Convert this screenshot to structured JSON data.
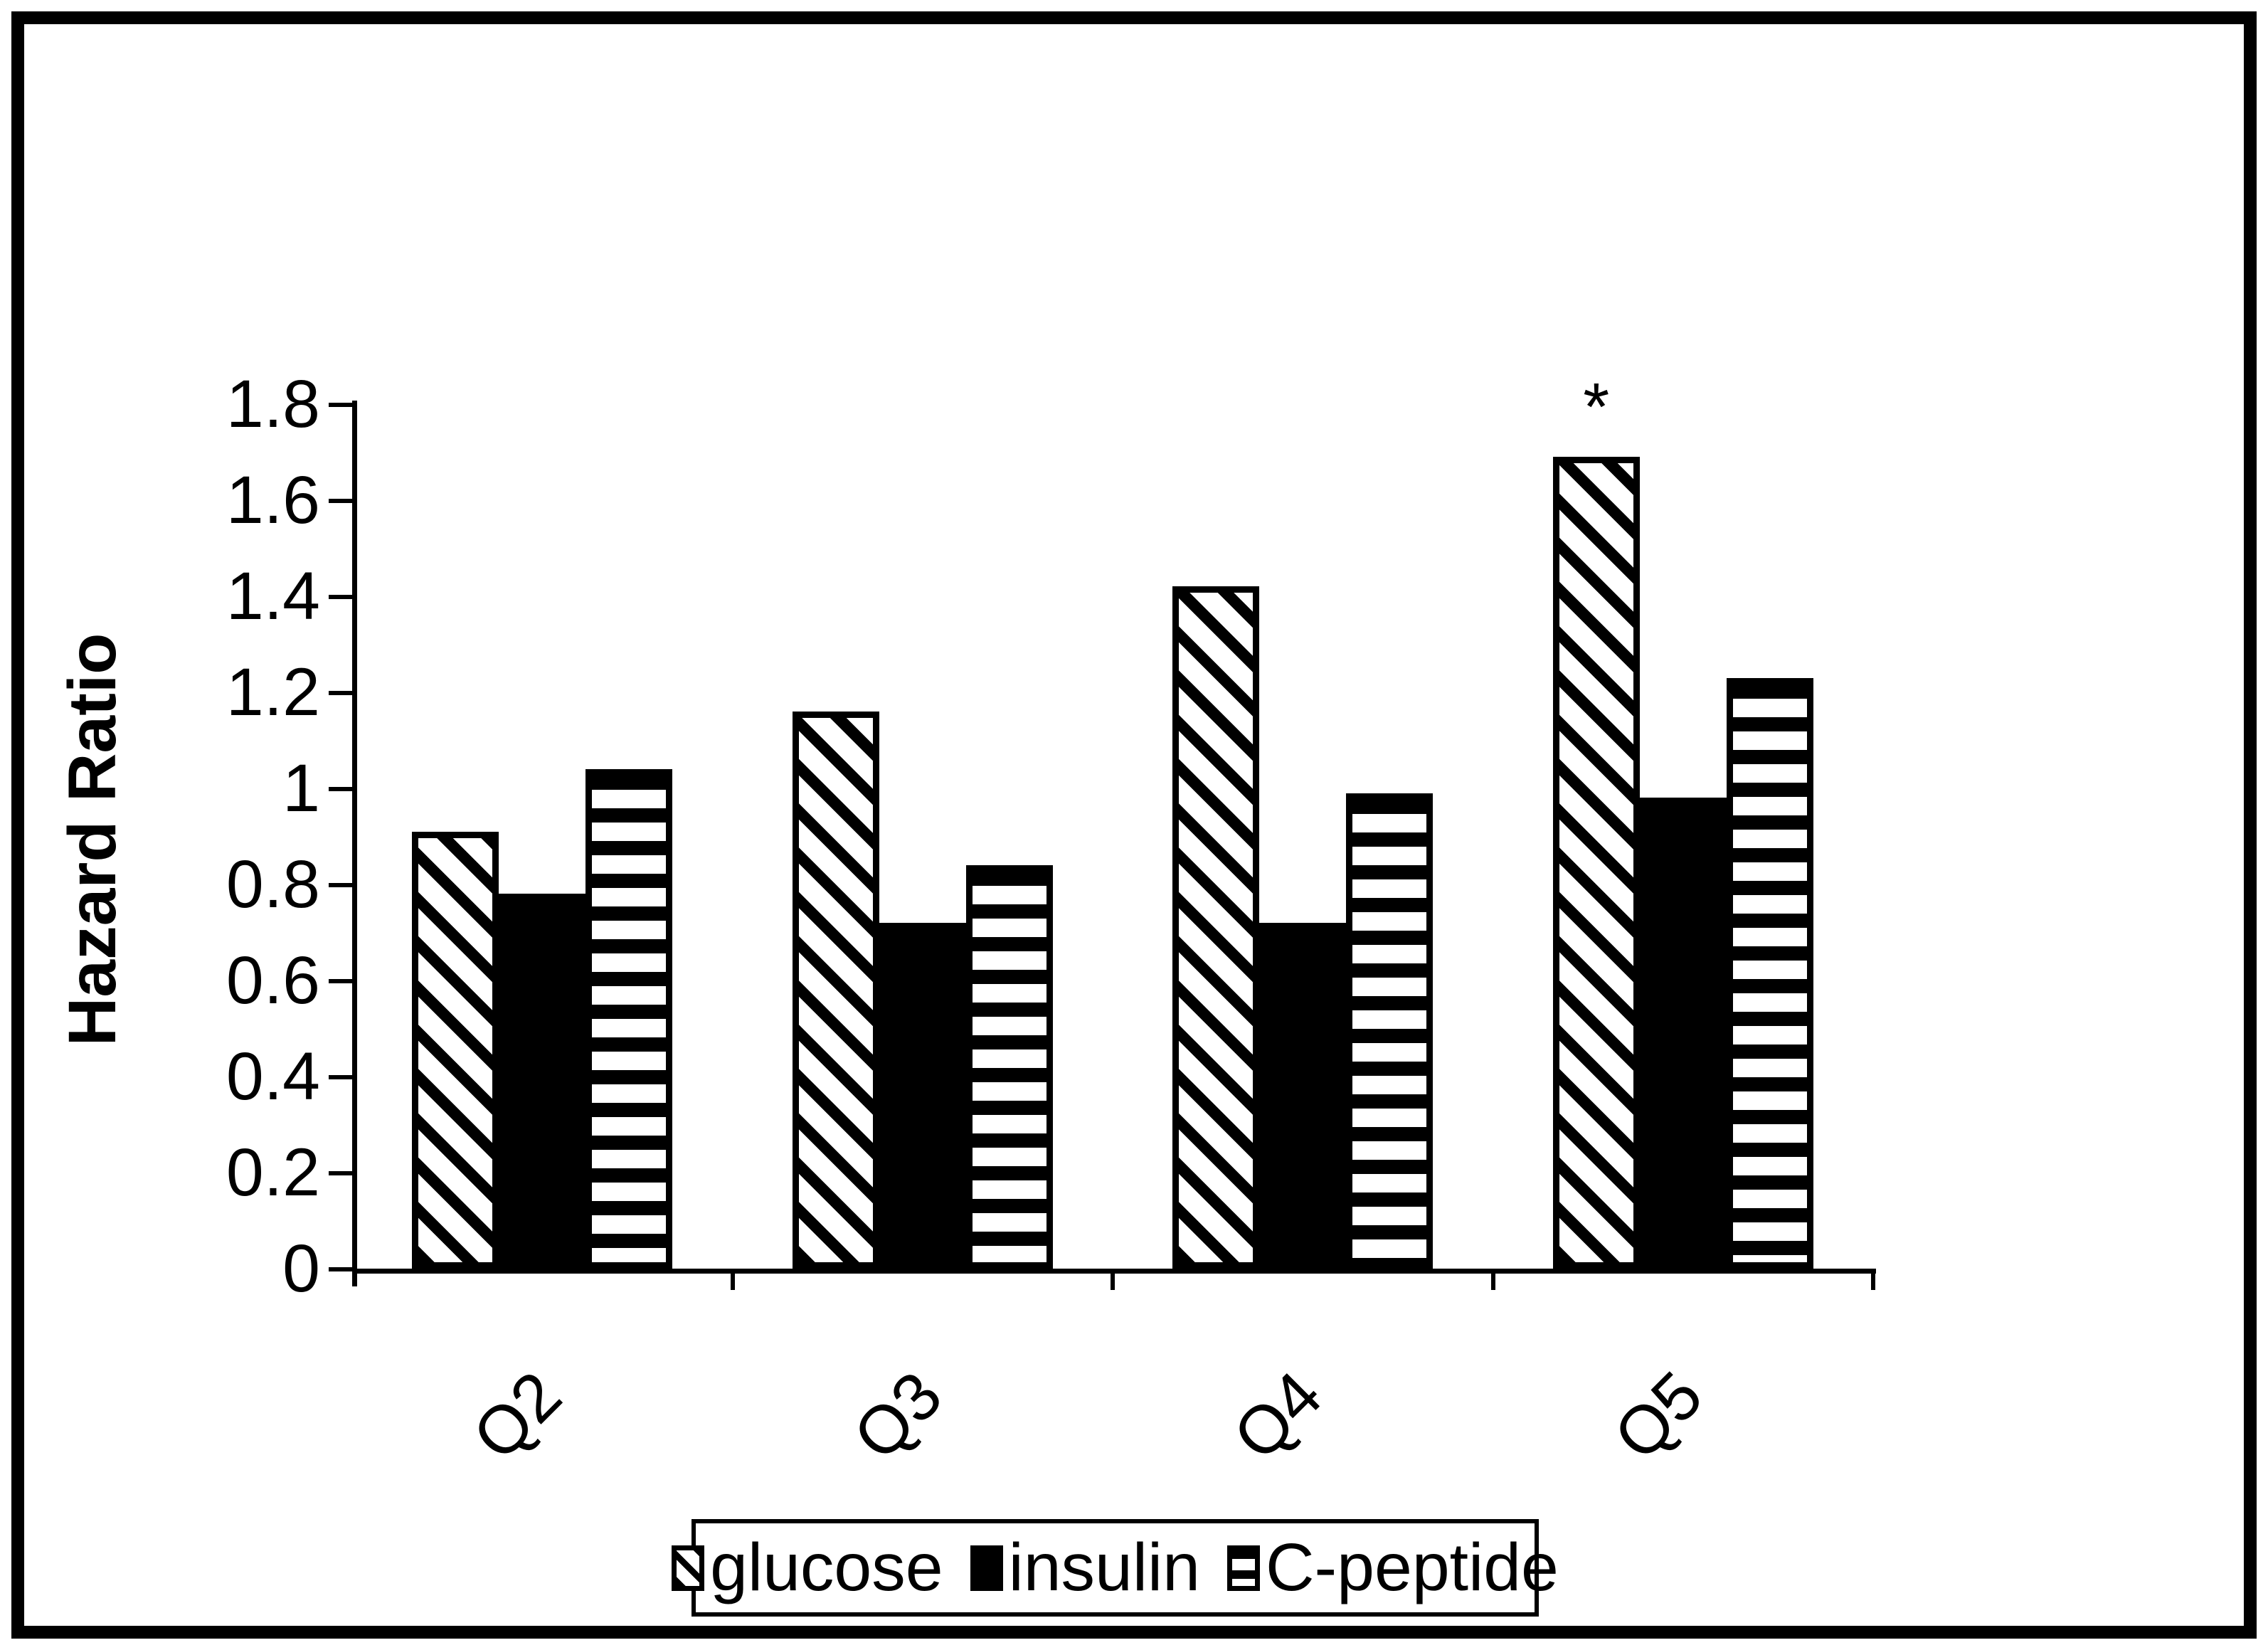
{
  "figure": {
    "ylabel": "Hazard Ratio",
    "background": "#ffffff",
    "foreground": "#000000"
  },
  "chart_data": {
    "type": "bar",
    "categories": [
      "Q2",
      "Q3",
      "Q4",
      "Q5"
    ],
    "series": [
      {
        "name": "glucose",
        "pattern": "diagonal-stripes",
        "values": [
          0.91,
          1.16,
          1.42,
          1.69
        ]
      },
      {
        "name": "insulin",
        "pattern": "solid-black",
        "values": [
          0.78,
          0.72,
          0.72,
          0.98
        ]
      },
      {
        "name": "C-peptide",
        "pattern": "horizontal-stripes",
        "values": [
          1.04,
          0.84,
          0.99,
          1.23
        ]
      }
    ],
    "title": "",
    "xlabel": "",
    "ylabel": "Hazard Ratio",
    "ylim": [
      0,
      1.8
    ],
    "y_tick_step": 0.2,
    "y_tick_labels": [
      "0",
      "0.2",
      "0.4",
      "0.6",
      "0.8",
      "1",
      "1.2",
      "1.4",
      "1.6",
      "1.8"
    ],
    "grid": false,
    "legend_position": "bottom",
    "annotations": [
      {
        "series": "glucose",
        "category": "Q5",
        "text": "*",
        "meaning": "significance-marker"
      }
    ],
    "colors": {
      "bars": "#000000",
      "background": "#ffffff"
    }
  }
}
